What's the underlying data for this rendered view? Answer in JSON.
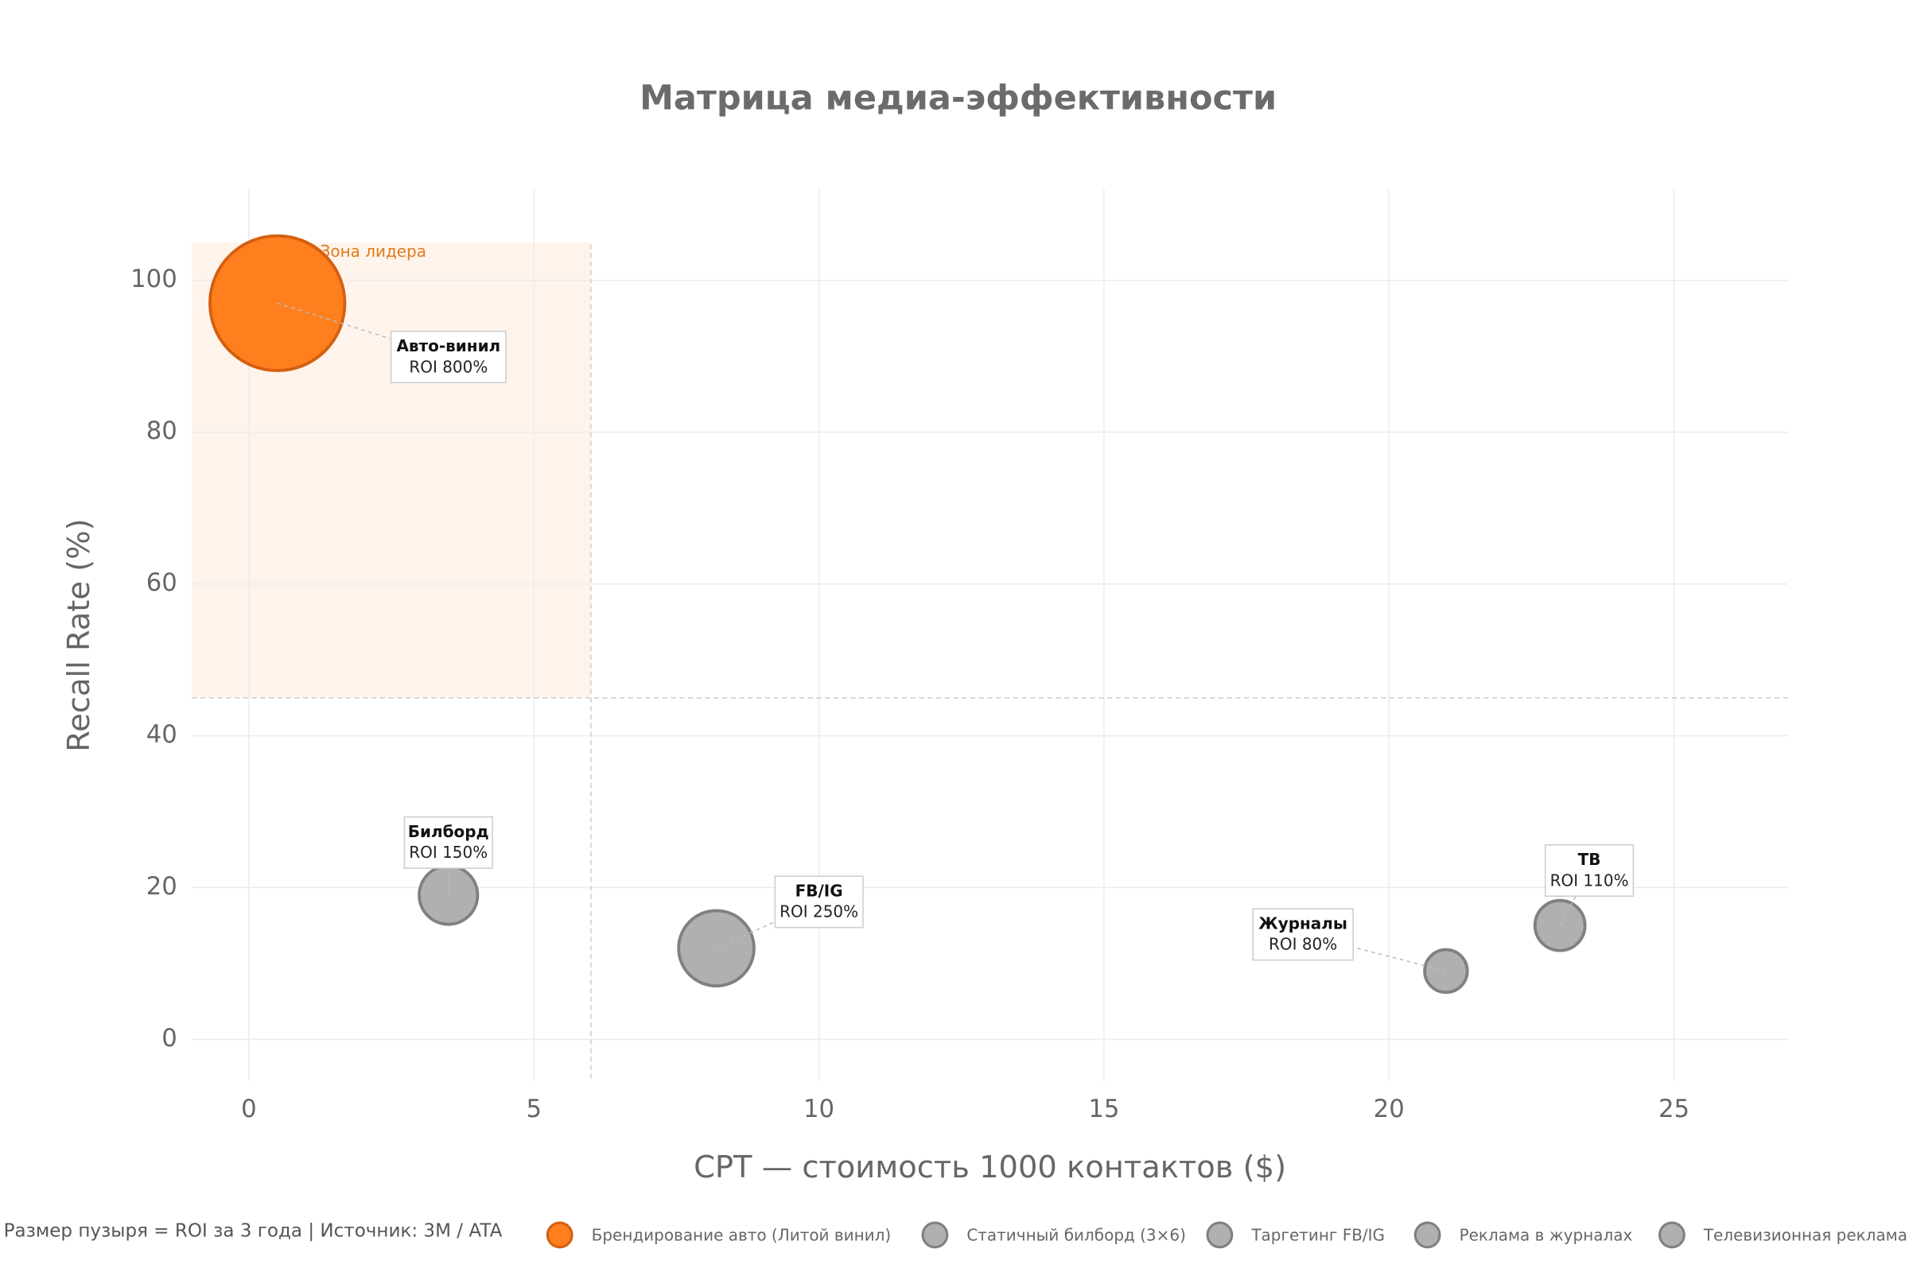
{
  "chart_data": {
    "type": "bubble",
    "title": "Матрица медиа-эффективности",
    "x_label": "CPT — стоимость 1000 контактов ($)",
    "y_label": "Recall Rate (%)",
    "footnote": "Размер пузыря = ROI за 3 года  |  Источник: 3M / ATA",
    "zone_label": "Зона лидера",
    "zone": {
      "x": [
        -1,
        6
      ],
      "y": [
        45,
        105
      ]
    },
    "xlim": [
      -1,
      27
    ],
    "ylim": [
      -5.5,
      112
    ],
    "xticks": [
      0,
      5,
      10,
      15,
      20,
      25
    ],
    "yticks": [
      0,
      20,
      40,
      60,
      80,
      100
    ],
    "grid": true,
    "series": [
      {
        "name": "Брендирование авто (Литой винил)",
        "color": "#ff7f1e",
        "x": [
          0.5
        ],
        "values": [
          97
        ],
        "sizes": [
          800
        ],
        "label": "Авто-винил",
        "value_labels": [
          "ROI 800%"
        ]
      },
      {
        "name": "Статичный билборд (3×6)",
        "color": "#b0b0b0",
        "x": [
          3.5
        ],
        "values": [
          19
        ],
        "sizes": [
          150
        ],
        "label": "Билборд",
        "value_labels": [
          "ROI 150%"
        ]
      },
      {
        "name": "Таргетинг FB/IG",
        "color": "#b0b0b0",
        "x": [
          8.2
        ],
        "values": [
          12
        ],
        "sizes": [
          250
        ],
        "label": "FB/IG",
        "value_labels": [
          "ROI 250%"
        ]
      },
      {
        "name": "Реклама в журналах",
        "color": "#b0b0b0",
        "x": [
          21
        ],
        "values": [
          9
        ],
        "sizes": [
          80
        ],
        "label": "Журналы",
        "value_labels": [
          "ROI 80%"
        ]
      },
      {
        "name": "Телевизионная реклама",
        "color": "#b0b0b0",
        "x": [
          23
        ],
        "values": [
          15
        ],
        "sizes": [
          110
        ],
        "label": "ТВ",
        "value_labels": [
          "ROI 110%"
        ]
      }
    ]
  }
}
